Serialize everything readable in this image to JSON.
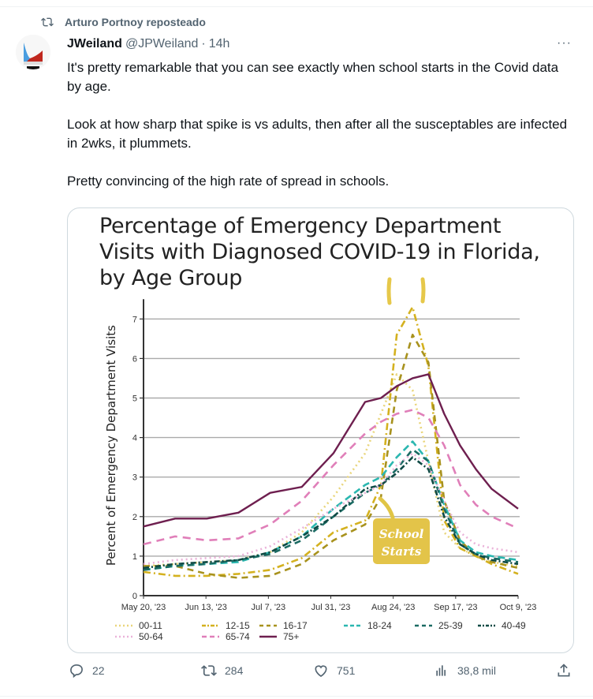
{
  "repost": {
    "label": "Arturo Portnoy reposteado",
    "icon": "repost-icon"
  },
  "tweet": {
    "name": "JWeiland",
    "handle": "@JPWeiland",
    "separator": "·",
    "time": "14h",
    "more": "···",
    "paragraphs": [
      "It's pretty remarkable that you can see exactly when school starts in the Covid data by age.",
      "Look at how sharp that spike is vs adults, then after all the susceptables are infected in 2wks, it plummets.",
      "Pretty convincing of the high rate of spread in schools."
    ]
  },
  "actions": {
    "replies": "22",
    "reposts": "284",
    "likes": "751",
    "views": "38,8 mil"
  },
  "chart_data": {
    "type": "line",
    "title": "Percentage of Emergency Department Visits with Diagnosed COVID-19 in Florida, by Age Group",
    "ylabel": "Percent of Emergency Department Visits",
    "xlabel": "",
    "ylim": [
      0,
      7.5
    ],
    "yticks": [
      "0",
      "1",
      "2",
      "3",
      "4",
      "5",
      "6",
      "7"
    ],
    "xticks": [
      "May 20, '23",
      "Jun 13, '23",
      "Jul 7, '23",
      "Jul 31, '23",
      "Aug 24, '23",
      "Sep 17, '23",
      "Oct 9, '23"
    ],
    "x_days": [
      0,
      12,
      24,
      36,
      48,
      60,
      72,
      84,
      90,
      96,
      102,
      108,
      114,
      120,
      126,
      132,
      142
    ],
    "annotation": {
      "line1": "School",
      "line2": "Starts"
    },
    "series": [
      {
        "name": "00-11",
        "color": "#e9d57a",
        "dash": "2 4",
        "values": [
          0.75,
          0.8,
          0.85,
          0.9,
          1.1,
          1.6,
          2.5,
          3.6,
          4.6,
          5.6,
          5.2,
          3.4,
          1.6,
          1.2,
          1.0,
          0.85,
          0.75
        ]
      },
      {
        "name": "12-15",
        "color": "#d4b11f",
        "dash": "9 4 2 4",
        "values": [
          0.6,
          0.5,
          0.5,
          0.55,
          0.65,
          0.95,
          1.6,
          1.9,
          2.8,
          6.6,
          7.3,
          5.8,
          1.9,
          1.2,
          1.0,
          0.8,
          0.55
        ]
      },
      {
        "name": "16-17",
        "color": "#a8921e",
        "dash": "8 6",
        "values": [
          0.75,
          0.75,
          0.55,
          0.45,
          0.5,
          0.8,
          1.4,
          1.8,
          2.5,
          5.2,
          6.6,
          5.9,
          2.4,
          1.4,
          1.0,
          0.85,
          0.7
        ]
      },
      {
        "name": "18-24",
        "color": "#2bb7b0",
        "dash": "9 5",
        "values": [
          0.65,
          0.75,
          0.8,
          0.85,
          1.1,
          1.5,
          2.2,
          2.8,
          3.0,
          3.5,
          3.9,
          3.4,
          2.3,
          1.4,
          1.1,
          1.0,
          0.9
        ]
      },
      {
        "name": "25-39",
        "color": "#1b6b63",
        "dash": "8 6",
        "values": [
          0.65,
          0.75,
          0.8,
          0.9,
          1.05,
          1.4,
          2.0,
          2.6,
          2.8,
          3.2,
          3.7,
          3.4,
          2.2,
          1.3,
          1.05,
          0.95,
          0.85
        ]
      },
      {
        "name": "40-49",
        "color": "#0f4a45",
        "dash": "7 3 2 3",
        "values": [
          0.7,
          0.8,
          0.85,
          0.9,
          1.1,
          1.5,
          2.0,
          2.7,
          2.8,
          3.1,
          3.5,
          3.2,
          2.0,
          1.3,
          1.05,
          0.9,
          0.8
        ]
      },
      {
        "name": "50-64",
        "color": "#eab3d9",
        "dash": "2 4",
        "values": [
          0.8,
          0.9,
          0.95,
          1.0,
          1.25,
          1.7,
          2.2,
          2.6,
          2.8,
          3.3,
          3.6,
          3.3,
          2.4,
          1.6,
          1.3,
          1.2,
          1.1
        ]
      },
      {
        "name": "65-74",
        "color": "#e07fb9",
        "dash": "10 7",
        "values": [
          1.3,
          1.5,
          1.4,
          1.45,
          1.8,
          2.4,
          3.3,
          4.1,
          4.4,
          4.6,
          4.7,
          4.5,
          3.8,
          2.8,
          2.3,
          2.0,
          1.7
        ]
      },
      {
        "name": "75+",
        "color": "#6e1f4f",
        "dash": "",
        "values": [
          1.75,
          1.95,
          1.95,
          2.1,
          2.6,
          2.75,
          3.6,
          4.9,
          5.0,
          5.3,
          5.5,
          5.6,
          4.6,
          3.8,
          3.2,
          2.7,
          2.2
        ]
      }
    ]
  }
}
